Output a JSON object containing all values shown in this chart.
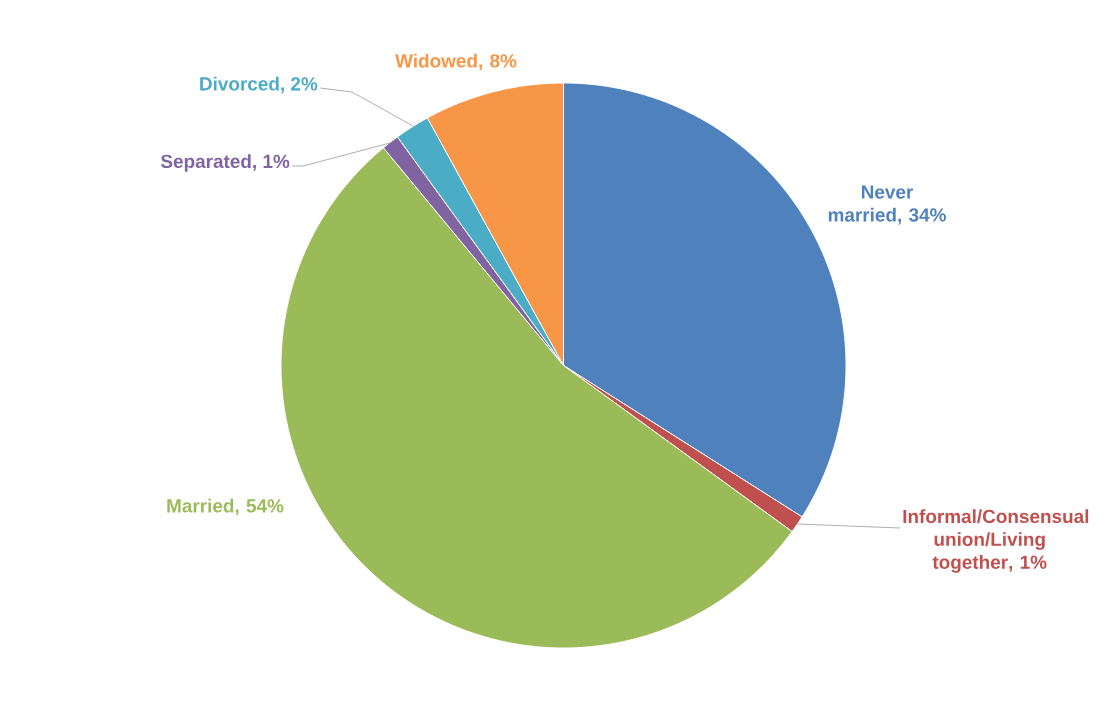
{
  "chart_data": {
    "type": "pie",
    "categories": [
      "Never married",
      "Informal/Consensual union/Living together",
      "Married",
      "Separated",
      "Divorced",
      "Widowed"
    ],
    "values": [
      34,
      1,
      54,
      1,
      2,
      8
    ],
    "value_labels": [
      ", 34%",
      ", 1%",
      ", 54%",
      ", 1%",
      ", 2%",
      ", 8%"
    ],
    "colors": [
      "#4f81bd",
      "#c0504d",
      "#9bbb59",
      "#8064a2",
      "#4bacc6",
      "#f79646"
    ]
  }
}
